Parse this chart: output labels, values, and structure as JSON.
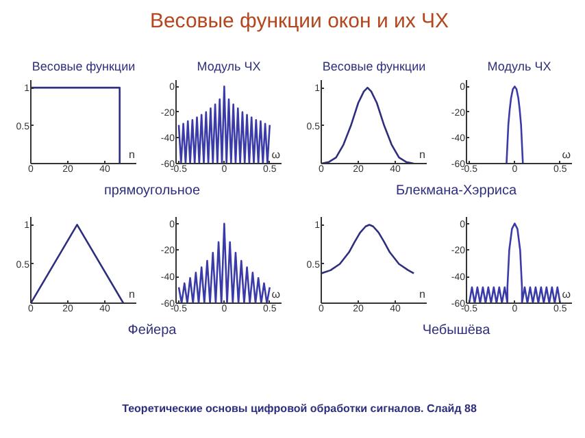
{
  "chart_data": [
    {
      "type": "line",
      "title": "Весовые функции",
      "xlabel": "n",
      "annotations": [
        "Весовые функции окон и их ЧХ",
        "прямоугольное",
        "Теоретические основы цифровой обработки сигналов.  Слайд  88"
      ],
      "xlim": [
        0,
        57
      ],
      "ylim": [
        0,
        1.1
      ],
      "xticks": [
        0,
        20,
        40
      ],
      "yticks": [
        0.5,
        1
      ],
      "series": [
        {
          "color": "#2e2e7e",
          "x": [
            0,
            48,
            48
          ],
          "values": [
            1,
            1,
            0
          ]
        }
      ]
    },
    {
      "type": "line",
      "title": "Модуль ЧХ",
      "xlabel": "ω",
      "xlim": [
        -0.53,
        0.63
      ],
      "ylim": [
        -60,
        5
      ],
      "xticks": [
        -0.5,
        0,
        0.5
      ],
      "yticks": [
        0,
        -20,
        -40,
        -60
      ],
      "series": [
        {
          "color": "#3a3aa8",
          "x": [
            -0.5,
            -0.475,
            -0.45,
            -0.425,
            -0.4,
            -0.375,
            -0.35,
            -0.325,
            -0.3,
            -0.275,
            -0.25,
            -0.225,
            -0.2,
            -0.175,
            -0.15,
            -0.125,
            -0.1,
            -0.075,
            -0.05,
            -0.025,
            0,
            0.025,
            0.05,
            0.075,
            0.1,
            0.125,
            0.15,
            0.175,
            0.2,
            0.225,
            0.25,
            0.275,
            0.3,
            0.325,
            0.35,
            0.375,
            0.4,
            0.425,
            0.45,
            0.475,
            0.5
          ],
          "values": [
            -30,
            -60,
            -29,
            -60,
            -27,
            -60,
            -26,
            -60,
            -24,
            -60,
            -22,
            -60,
            -20,
            -60,
            -17,
            -60,
            -14,
            -60,
            -10,
            -60,
            0,
            -60,
            -10,
            -60,
            -14,
            -60,
            -17,
            -60,
            -20,
            -60,
            -22,
            -60,
            -24,
            -60,
            -26,
            -60,
            -27,
            -60,
            -29,
            -60,
            -30
          ]
        }
      ]
    },
    {
      "type": "line",
      "title": "Весовые функции",
      "xlabel": "n",
      "annotations": [
        "Блекмана-Хэрриса"
      ],
      "xlim": [
        0,
        57
      ],
      "ylim": [
        0,
        1.1
      ],
      "xticks": [
        0,
        20,
        40
      ],
      "yticks": [
        0.5,
        1
      ],
      "series": [
        {
          "color": "#2e2e7e",
          "x": [
            0,
            4,
            8,
            12,
            16,
            20,
            23,
            25,
            27,
            30,
            34,
            38,
            42,
            46,
            50
          ],
          "values": [
            0,
            0.02,
            0.08,
            0.25,
            0.5,
            0.8,
            0.95,
            1,
            0.95,
            0.8,
            0.5,
            0.25,
            0.08,
            0.02,
            0
          ]
        }
      ]
    },
    {
      "type": "line",
      "title": "Модуль ЧХ",
      "xlabel": "ω",
      "xlim": [
        -0.53,
        0.63
      ],
      "ylim": [
        -60,
        5
      ],
      "xticks": [
        -0.5,
        0,
        0.5
      ],
      "yticks": [
        0,
        -20,
        -40,
        -60
      ],
      "series": [
        {
          "color": "#3a3aa8",
          "x": [
            -0.09,
            -0.08,
            -0.07,
            -0.055,
            -0.04,
            -0.02,
            0,
            0.02,
            0.04,
            0.055,
            0.07,
            0.08,
            0.09
          ],
          "values": [
            -60,
            -45,
            -30,
            -18,
            -9,
            -2,
            0,
            -2,
            -9,
            -18,
            -30,
            -45,
            -60
          ]
        }
      ]
    },
    {
      "type": "line",
      "xlabel": "n",
      "annotations": [
        "Фейера"
      ],
      "xlim": [
        0,
        57
      ],
      "ylim": [
        0,
        1.1
      ],
      "xticks": [
        0,
        20,
        40
      ],
      "yticks": [
        0.5,
        1
      ],
      "series": [
        {
          "color": "#2e2e7e",
          "x": [
            0,
            25,
            50
          ],
          "values": [
            0,
            1,
            0
          ]
        }
      ]
    },
    {
      "type": "line",
      "xlabel": "ω",
      "xlim": [
        -0.53,
        0.63
      ],
      "ylim": [
        -60,
        5
      ],
      "xticks": [
        -0.5,
        0,
        0.5
      ],
      "yticks": [
        0,
        -20,
        -40,
        -60
      ],
      "series": [
        {
          "color": "#3a3aa8",
          "x": [
            -0.5,
            -0.46875,
            -0.4375,
            -0.40625,
            -0.375,
            -0.34375,
            -0.3125,
            -0.28125,
            -0.25,
            -0.21875,
            -0.1875,
            -0.15625,
            -0.125,
            -0.09375,
            -0.0625,
            -0.03125,
            0,
            0.03125,
            0.0625,
            0.09375,
            0.125,
            0.15625,
            0.1875,
            0.21875,
            0.25,
            0.28125,
            0.3125,
            0.34375,
            0.375,
            0.40625,
            0.4375,
            0.46875,
            0.5
          ],
          "values": [
            -48,
            -60,
            -45,
            -60,
            -41,
            -60,
            -37,
            -60,
            -33,
            -60,
            -28,
            -60,
            -22,
            -60,
            -14,
            -60,
            0,
            -60,
            -14,
            -60,
            -22,
            -60,
            -28,
            -60,
            -33,
            -60,
            -37,
            -60,
            -41,
            -60,
            -45,
            -60,
            -48
          ]
        }
      ]
    },
    {
      "type": "line",
      "xlabel": "n",
      "annotations": [
        "Чебышёва"
      ],
      "xlim": [
        0,
        57
      ],
      "ylim": [
        0,
        1.1
      ],
      "xticks": [
        0,
        20,
        40
      ],
      "yticks": [
        0.5,
        1
      ],
      "series": [
        {
          "color": "#2e2e7e",
          "x": [
            0,
            5,
            10,
            15,
            18,
            21,
            24,
            26,
            28,
            31,
            34,
            37,
            42,
            47,
            50
          ],
          "values": [
            0.38,
            0.42,
            0.5,
            0.65,
            0.78,
            0.9,
            0.98,
            1,
            0.98,
            0.9,
            0.78,
            0.65,
            0.5,
            0.42,
            0.38
          ]
        }
      ]
    },
    {
      "type": "line",
      "xlabel": "ω",
      "xlim": [
        -0.53,
        0.63
      ],
      "ylim": [
        -60,
        5
      ],
      "xticks": [
        -0.5,
        0,
        0.5
      ],
      "yticks": [
        0,
        -20,
        -40,
        -60
      ],
      "series": [
        {
          "color": "#3a3aa8",
          "x": [
            -0.5,
            -0.47,
            -0.44,
            -0.41,
            -0.38,
            -0.35,
            -0.32,
            -0.29,
            -0.26,
            -0.23,
            -0.2,
            -0.17,
            -0.14,
            -0.11,
            -0.08,
            -0.08,
            -0.06,
            -0.03,
            0,
            0.03,
            0.06,
            0.08,
            0.08,
            0.11,
            0.14,
            0.17,
            0.2,
            0.23,
            0.26,
            0.29,
            0.32,
            0.35,
            0.38,
            0.41,
            0.44,
            0.47,
            0.5
          ],
          "values": [
            -60,
            -48,
            -60,
            -48,
            -60,
            -48,
            -60,
            -48,
            -60,
            -48,
            -60,
            -48,
            -60,
            -48,
            -60,
            -48,
            -20,
            -4,
            0,
            -4,
            -20,
            -48,
            -60,
            -48,
            -60,
            -48,
            -60,
            -48,
            -60,
            -48,
            -60,
            -48,
            -60,
            -48,
            -60,
            -48,
            -60
          ]
        }
      ]
    }
  ]
}
